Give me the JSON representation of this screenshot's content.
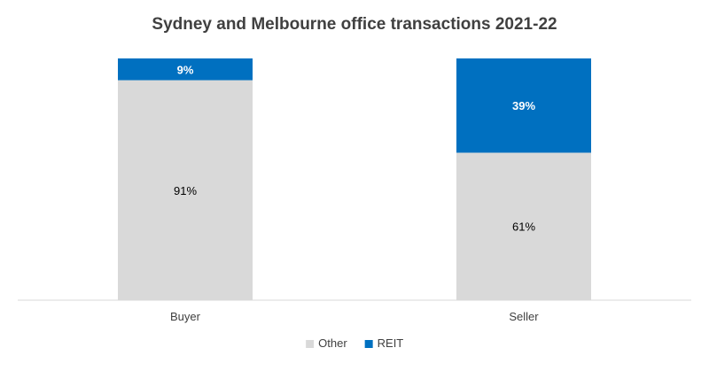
{
  "chart_data": {
    "type": "bar",
    "stacked": true,
    "percent_stacked": true,
    "title": "Sydney and Melbourne office transactions 2021-22",
    "xlabel": "",
    "ylabel": "",
    "categories": [
      "Buyer",
      "Seller"
    ],
    "series": [
      {
        "name": "Other",
        "values": [
          91,
          61
        ],
        "labels": [
          "91%",
          "61%"
        ]
      },
      {
        "name": "REIT",
        "values": [
          9,
          39
        ],
        "labels": [
          "9%",
          "39%"
        ]
      }
    ],
    "ylim": [
      0,
      100
    ],
    "grid": false,
    "legend": "bottom"
  },
  "colors": {
    "Other": "#d9d9d9",
    "REIT": "#0070c0",
    "axis": "#d9d9d9",
    "title": "#404040",
    "text": "#404040",
    "label_on_light": "#000000",
    "label_on_dark": "#ffffff"
  }
}
